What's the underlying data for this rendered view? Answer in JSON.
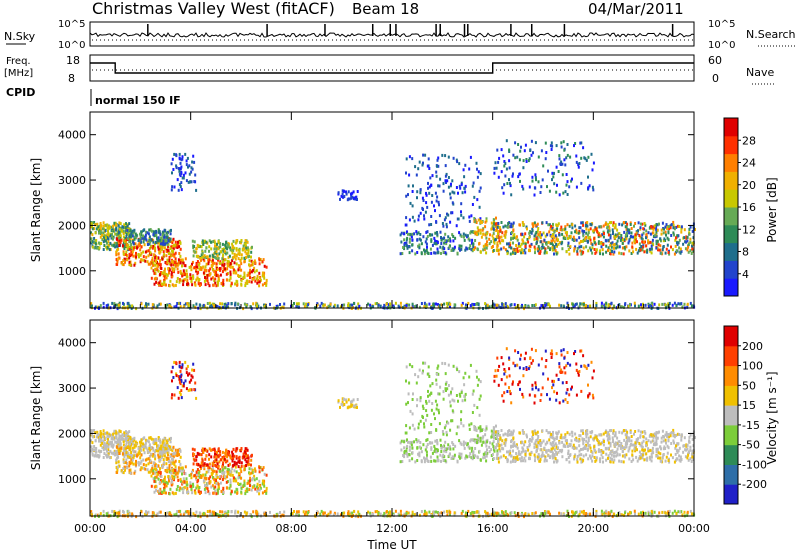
{
  "header": {
    "station": "Christmas Valley West (fitACF)",
    "beam": "Beam 18",
    "date": "04/Mar/2011"
  },
  "top_panels": {
    "nsky_label": "N.Sky",
    "nsky_ticks": [
      "10^5",
      "10^0"
    ],
    "nsearch_label": "N.Search",
    "nsearch_ticks": [
      "10^5",
      "10^0"
    ],
    "freq_label_1": "Freq.",
    "freq_label_2": "[MHz]",
    "freq_ticks": [
      "18",
      "8"
    ],
    "nave_label": "Nave",
    "nave_ticks": [
      "60",
      "0"
    ],
    "cpid_label": "CPID",
    "cpid_text": "normal 150 IF"
  },
  "chart_data": [
    {
      "type": "heatmap",
      "name": "power",
      "xlabel": "Time UT",
      "ylabel": "Slant Range [km]",
      "x_ticks": [
        "00:00",
        "04:00",
        "08:00",
        "12:00",
        "16:00",
        "20:00",
        "00:00"
      ],
      "xlim": [
        0,
        24
      ],
      "y_ticks": [
        "1000",
        "2000",
        "3000",
        "4000"
      ],
      "ylim": [
        180,
        4500
      ],
      "colorbar_label": "Power [dB]",
      "colorbar_ticks": [
        "28",
        "24",
        "20",
        "16",
        "12",
        "8",
        "4"
      ],
      "colorscale": [
        "#1a1aff",
        "#2244cc",
        "#1f6e8c",
        "#2e8b57",
        "#66aa55",
        "#c8c800",
        "#f0b000",
        "#ff7f00",
        "#ff3000",
        "#e00000"
      ]
    },
    {
      "type": "heatmap",
      "name": "velocity",
      "xlabel": "Time UT",
      "ylabel": "Slant Range [km]",
      "x_ticks": [
        "00:00",
        "04:00",
        "08:00",
        "12:00",
        "16:00",
        "20:00",
        "00:00"
      ],
      "xlim": [
        0,
        24
      ],
      "y_ticks": [
        "1000",
        "2000",
        "3000",
        "4000"
      ],
      "ylim": [
        180,
        4500
      ],
      "colorbar_label": "Velocity [m s⁻¹]",
      "colorbar_ticks": [
        "200",
        "100",
        "50",
        "15",
        "-15",
        "-50",
        "-100",
        "-200"
      ],
      "colorscale": [
        "#2020c8",
        "#2e6ea8",
        "#2e8b57",
        "#7ccd3a",
        "#bdbdbd",
        "#f0c000",
        "#ff8c00",
        "#ff4000",
        "#e00000"
      ]
    }
  ]
}
